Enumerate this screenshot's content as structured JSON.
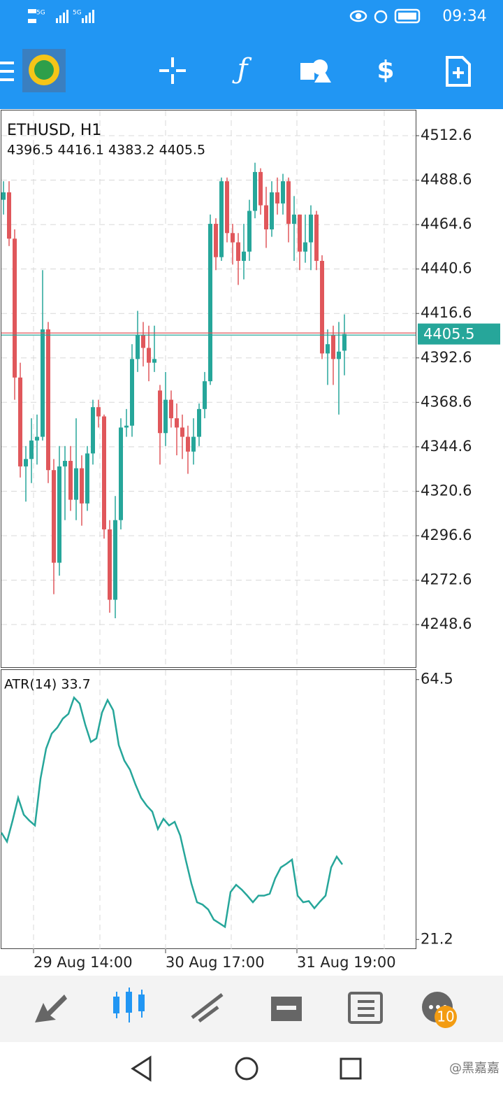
{
  "status_bar": {
    "network": [
      "5G",
      "5G"
    ],
    "time": "09:34"
  },
  "chart_data": [
    {
      "type": "candlestick",
      "title": "ETHUSD, H1",
      "subtitle": "4396.5 4416.1 4383.2 4405.5",
      "up_color": "#26a69a",
      "down_color": "#e0575b",
      "grid": true,
      "ylim": [
        4225.2,
        4526.2
      ],
      "yticks": [
        4512.6,
        4488.6,
        4464.6,
        4440.6,
        4416.6,
        4392.6,
        4368.6,
        4344.6,
        4320.6,
        4296.6,
        4272.6,
        4248.6
      ],
      "xticks": [
        "29 Aug 14:00",
        "30 Aug 17:00",
        "31 Aug 19:00"
      ],
      "candles": [
        [
          4478,
          4488,
          4470,
          4482
        ],
        [
          4482,
          4488,
          4453,
          4457
        ],
        [
          4457,
          4462,
          4370,
          4382
        ],
        [
          4382,
          4390,
          4328,
          4334
        ],
        [
          4334,
          4345,
          4315,
          4338
        ],
        [
          4338,
          4360,
          4325,
          4348
        ],
        [
          4348,
          4362,
          4335,
          4350
        ],
        [
          4350,
          4440,
          4348,
          4408
        ],
        [
          4408,
          4412,
          4325,
          4332
        ],
        [
          4332,
          4338,
          4265,
          4282
        ],
        [
          4282,
          4345,
          4275,
          4334
        ],
        [
          4334,
          4345,
          4305,
          4337
        ],
        [
          4337,
          4345,
          4310,
          4316
        ],
        [
          4316,
          4360,
          4305,
          4333
        ],
        [
          4333,
          4340,
          4302,
          4314
        ],
        [
          4314,
          4345,
          4310,
          4341
        ],
        [
          4341,
          4370,
          4335,
          4366
        ],
        [
          4366,
          4370,
          4355,
          4361
        ],
        [
          4361,
          4362,
          4295,
          4300
        ],
        [
          4300,
          4305,
          4255,
          4262
        ],
        [
          4262,
          4318,
          4252,
          4305
        ],
        [
          4305,
          4360,
          4300,
          4355
        ],
        [
          4355,
          4365,
          4350,
          4356
        ],
        [
          4356,
          4400,
          4350,
          4392
        ],
        [
          4392,
          4418,
          4385,
          4405
        ],
        [
          4405,
          4412,
          4388,
          4398
        ],
        [
          4398,
          4410,
          4380,
          4390
        ],
        [
          4390,
          4410,
          4385,
          4392
        ],
        [
          4375,
          4378,
          4335,
          4352
        ],
        [
          4352,
          4385,
          4345,
          4370
        ],
        [
          4370,
          4375,
          4355,
          4360
        ],
        [
          4360,
          4368,
          4340,
          4355
        ],
        [
          4355,
          4362,
          4338,
          4350
        ],
        [
          4350,
          4356,
          4330,
          4342
        ],
        [
          4342,
          4360,
          4335,
          4350
        ],
        [
          4350,
          4368,
          4345,
          4365
        ],
        [
          4365,
          4385,
          4360,
          4380
        ],
        [
          4380,
          4470,
          4378,
          4465
        ],
        [
          4465,
          4468,
          4440,
          4447
        ],
        [
          4447,
          4490,
          4445,
          4488
        ],
        [
          4488,
          4490,
          4455,
          4460
        ],
        [
          4460,
          4465,
          4443,
          4455
        ],
        [
          4455,
          4460,
          4432,
          4445
        ],
        [
          4445,
          4465,
          4435,
          4450
        ],
        [
          4450,
          4478,
          4445,
          4472
        ],
        [
          4472,
          4498,
          4468,
          4493
        ],
        [
          4493,
          4495,
          4470,
          4475
        ],
        [
          4475,
          4485,
          4452,
          4462
        ],
        [
          4462,
          4488,
          4458,
          4482
        ],
        [
          4482,
          4490,
          4470,
          4476
        ],
        [
          4476,
          4492,
          4470,
          4488
        ],
        [
          4488,
          4490,
          4455,
          4465
        ],
        [
          4465,
          4480,
          4445,
          4470
        ],
        [
          4470,
          4470,
          4440,
          4450
        ],
        [
          4450,
          4470,
          4444,
          4455
        ],
        [
          4455,
          4475,
          4440,
          4470
        ],
        [
          4470,
          4472,
          4440,
          4445
        ],
        [
          4445,
          4448,
          4392,
          4395
        ],
        [
          4395,
          4408,
          4378,
          4400
        ],
        [
          4405,
          4410,
          4378,
          4392
        ],
        [
          4392,
          4412,
          4362,
          4396
        ],
        [
          4396.5,
          4416.1,
          4383.2,
          4405.5
        ]
      ]
    },
    {
      "type": "line",
      "title": "ATR(14) 33.7",
      "color": "#26a69a",
      "ylim": [
        19.6,
        66.1
      ],
      "yticks": [
        64.5,
        21.2
      ],
      "values": [
        39,
        37.5,
        41,
        44.8,
        42,
        41,
        40.2,
        48,
        53,
        55.5,
        56.5,
        58,
        58.8,
        61.5,
        60.5,
        57,
        54.1,
        54.7,
        59,
        61.1,
        59.4,
        53.6,
        51,
        49.5,
        47,
        44.8,
        43.5,
        42.5,
        39.6,
        41.3,
        40.2,
        40.8,
        38.5,
        34.4,
        30.5,
        27.4,
        27,
        26.2,
        24.5,
        23.9,
        23.3,
        29.1,
        30.3,
        29.5,
        28.5,
        27.4,
        28.5,
        28.5,
        28.8,
        31.4,
        33.2,
        33.8,
        34.5,
        28.5,
        27.4,
        27.6,
        26.4,
        27.5,
        28.5,
        33.2,
        35,
        33.7
      ]
    }
  ],
  "bottom_nav": {
    "badge": "10"
  },
  "watermark": "@黑嘉嘉"
}
